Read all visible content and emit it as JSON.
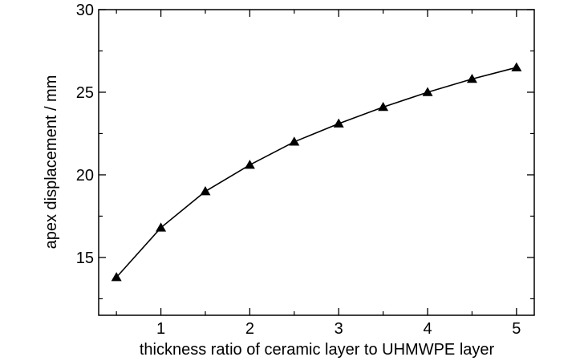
{
  "chart_data": {
    "type": "line",
    "title": "",
    "xlabel": "thickness ratio of ceramic layer to UHMWPE layer",
    "ylabel": "apex displacement / mm",
    "xlim": [
      0.3,
      5.2
    ],
    "ylim": [
      11.5,
      30
    ],
    "xticks": [
      1,
      2,
      3,
      4,
      5
    ],
    "xtick_labels": [
      "1",
      "2",
      "3",
      "4",
      "5"
    ],
    "yticks": [
      15,
      20,
      25,
      30
    ],
    "ytick_labels": [
      "15",
      "20",
      "25",
      "30"
    ],
    "x_minor_ticks": [
      0.5,
      1.5,
      2.5,
      3.5,
      4.5
    ],
    "y_minor_ticks": [
      12.5,
      17.5,
      22.5,
      27.5
    ],
    "grid": false,
    "marker": "triangle",
    "color": "#000000",
    "series": [
      {
        "x": [
          0.5,
          1.0,
          1.5,
          2.0,
          2.5,
          3.0,
          3.5,
          4.0,
          4.5,
          5.0
        ],
        "y": [
          13.8,
          16.8,
          19.0,
          20.6,
          22.0,
          23.1,
          24.1,
          25.0,
          25.8,
          26.5
        ]
      }
    ]
  }
}
